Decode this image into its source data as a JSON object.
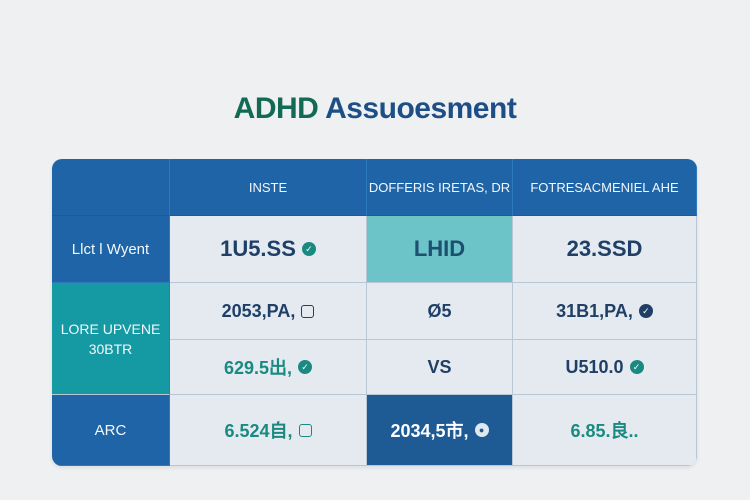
{
  "title": {
    "part1": "ADHD",
    "part2": "Assuoesment"
  },
  "table": {
    "headers": [
      "",
      "INSTE",
      "DOFFERIS IRETAS, DR",
      "FOTRESACMENIEL AHE"
    ],
    "row1": {
      "label": "Llct l Wyent",
      "c1": "1U5.SS",
      "c2": "LHID",
      "c3": "23.SSD"
    },
    "row2": {
      "label_line1": "LORE UPVENE",
      "label_line2": "30BTR",
      "c1": "2053,PA,",
      "c2": "Ø5",
      "c3": "31B1,PA,"
    },
    "row3": {
      "c1": "629.5出,",
      "c2": "VS",
      "c3": "U510.0"
    },
    "row4": {
      "label": "ARC",
      "c1": "6.524自,",
      "c2": "2034,5市,",
      "c3": "6.85.良.."
    }
  },
  "icons": [
    "check-circle-icon",
    "square-icon",
    "circle-icon"
  ],
  "colors": {
    "header_blue": "#1e64a6",
    "teal": "#159aa3",
    "light_teal": "#6cc3c8",
    "navy": "#1e5a93",
    "title_green": "#136a54",
    "title_blue": "#1d4f86"
  }
}
